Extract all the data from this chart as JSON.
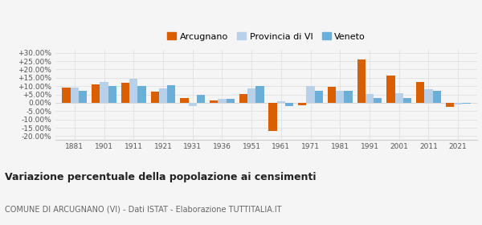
{
  "years": [
    1881,
    1901,
    1911,
    1921,
    1931,
    1936,
    1951,
    1961,
    1971,
    1981,
    1991,
    2001,
    2011,
    2021
  ],
  "arcugnano": [
    9.0,
    11.0,
    12.0,
    6.5,
    3.0,
    1.2,
    5.5,
    -17.0,
    -1.5,
    9.5,
    26.0,
    16.5,
    12.5,
    -2.5
  ],
  "provincia_vi": [
    9.0,
    12.5,
    14.5,
    8.5,
    -2.0,
    2.5,
    8.5,
    1.0,
    10.0,
    7.0,
    5.5,
    6.0,
    8.0,
    -1.0
  ],
  "veneto": [
    7.0,
    10.0,
    10.0,
    10.5,
    5.0,
    2.5,
    10.0,
    -2.0,
    7.0,
    7.0,
    3.0,
    3.0,
    7.0,
    -0.5
  ],
  "color_arcugnano": "#d95f02",
  "color_provincia": "#b8d0e8",
  "color_veneto": "#6baed6",
  "title": "Variazione percentuale della popolazione ai censimenti",
  "subtitle": "COMUNE DI ARCUGNANO (VI) - Dati ISTAT - Elaborazione TUTTITALIA.IT",
  "legend_labels": [
    "Arcugnano",
    "Provincia di VI",
    "Veneto"
  ],
  "yticks": [
    -20,
    -15,
    -10,
    -5,
    0,
    5,
    10,
    15,
    20,
    25,
    30
  ],
  "ytick_labels": [
    "-20.00%",
    "-15.00%",
    "-10.00%",
    "-5.00%",
    "0.00%",
    "+5.00%",
    "+10.00%",
    "+15.00%",
    "+20.00%",
    "+25.00%",
    "+30.00%"
  ],
  "bar_width": 0.28,
  "bg_color": "#f5f5f5",
  "grid_color": "#e0e0e0"
}
